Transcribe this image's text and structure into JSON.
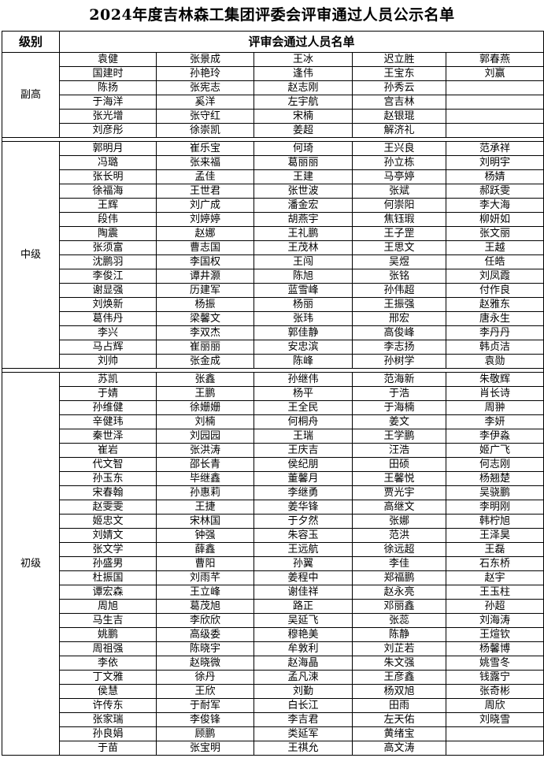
{
  "title": "2024年度吉林森工集团评委会评审通过人员公示名单",
  "header": {
    "level": "级别",
    "names": "评审会通过人员名单"
  },
  "sections": [
    {
      "level": "副高",
      "rows": [
        [
          "袁健",
          "张景成",
          "王冰",
          "迟立胜",
          "郭春燕"
        ],
        [
          "国建时",
          "孙艳玲",
          "逢伟",
          "王宝东",
          "刘赢"
        ],
        [
          "陈扬",
          "张宪志",
          "赵志刚",
          "孙秀云",
          ""
        ],
        [
          "于海洋",
          "奚洋",
          "左宇航",
          "宫吉林",
          ""
        ],
        [
          "张光增",
          "张守红",
          "宋楠",
          "赵银琨",
          ""
        ],
        [
          "刘彦彤",
          "徐崇凯",
          "姜超",
          "解济礼",
          ""
        ]
      ]
    },
    {
      "level": "中级",
      "rows": [
        [
          "郭明月",
          "崔乐宝",
          "何琦",
          "王兴良",
          "范承祥"
        ],
        [
          "冯璐",
          "张来福",
          "葛丽丽",
          "孙立栋",
          "刘明宇"
        ],
        [
          "张长明",
          "孟佳",
          "王建",
          "马亭婷",
          "杨婧"
        ],
        [
          "徐福海",
          "王世君",
          "张世波",
          "张斌",
          "郝跃雯"
        ],
        [
          "王辉",
          "刘广成",
          "潘金宏",
          "何崇阳",
          "李大海"
        ],
        [
          "段伟",
          "刘婷婷",
          "胡燕宇",
          "焦钰瑕",
          "柳妍如"
        ],
        [
          "陶震",
          "赵娜",
          "王礼鹏",
          "王子罡",
          "张文丽"
        ],
        [
          "张须富",
          "曹志国",
          "王茂林",
          "王思文",
          "王越"
        ],
        [
          "沈鹏羽",
          "李国权",
          "王闯",
          "吴煜",
          "任皓"
        ],
        [
          "李俊江",
          "谭井灏",
          "陈旭",
          "张铭",
          "刘凤霞"
        ],
        [
          "谢显强",
          "历建军",
          "蓝雪峰",
          "孙伟超",
          "付作良"
        ],
        [
          "刘焕新",
          "杨振",
          "杨丽",
          "王振强",
          "赵雅东"
        ],
        [
          "葛伟丹",
          "梁馨文",
          "张玮",
          "邢宏",
          "唐永生"
        ],
        [
          "李兴",
          "李双杰",
          "郭佳静",
          "高俊峰",
          "李丹丹"
        ],
        [
          "马占辉",
          "崔丽丽",
          "安忠滨",
          "李志扬",
          "韩贞洁"
        ],
        [
          "刘帅",
          "张金成",
          "陈峰",
          "孙树学",
          "袁勋"
        ]
      ]
    },
    {
      "level": "初级",
      "rows": [
        [
          "苏凯",
          "张鑫",
          "孙继伟",
          "范海新",
          "朱敬辉"
        ],
        [
          "于婧",
          "王鹏",
          "杨平",
          "于浩",
          "肖长诗"
        ],
        [
          "孙维健",
          "徐姗姗",
          "王全民",
          "于海楠",
          "周翀"
        ],
        [
          "辛健玮",
          "刘楠",
          "何桐舟",
          "姜文",
          "李妍"
        ],
        [
          "秦世泽",
          "刘园园",
          "王瑞",
          "王学鹏",
          "李伊淼"
        ],
        [
          "崔岩",
          "张洪涛",
          "王庆吉",
          "汪浩",
          "姬广飞"
        ],
        [
          "代文智",
          "邵长青",
          "侯纪朋",
          "田硕",
          "何志刚"
        ],
        [
          "孙玉东",
          "毕继鑫",
          "董馨月",
          "王馨悦",
          "杨翘楚"
        ],
        [
          "宋春翰",
          "孙惠莉",
          "李继勇",
          "贾光宇",
          "吴骁鹏"
        ],
        [
          "赵雯雯",
          "王捷",
          "姜华锋",
          "高继文",
          "李明刚"
        ],
        [
          "姬忠文",
          "宋林国",
          "于夕然",
          "张娜",
          "韩柠旭"
        ],
        [
          "刘婧文",
          "钟强",
          "朱容玉",
          "范洪",
          "王泽昊"
        ],
        [
          "张文学",
          "薛鑫",
          "王远航",
          "徐远超",
          "王磊"
        ],
        [
          "孙盛男",
          "曹阳",
          "孙翼",
          "李佳",
          "石东桥"
        ],
        [
          "杜振国",
          "刘雨芊",
          "姜程中",
          "郑福鹏",
          "赵宇"
        ],
        [
          "谭宏森",
          "王立峰",
          "谢佳祥",
          "赵永亮",
          "王玉柱"
        ],
        [
          "周旭",
          "葛茂旭",
          "路正",
          "邓丽鑫",
          "孙超"
        ],
        [
          "马生吉",
          "李欣欣",
          "吴延飞",
          "张蕊",
          "刘海涛"
        ],
        [
          "姚鹏",
          "高级委",
          "穆艳美",
          "陈静",
          "王煊钦"
        ],
        [
          "周祖强",
          "陈晓宇",
          "牟敦利",
          "刘芷若",
          "杨馨博"
        ],
        [
          "李依",
          "赵晓微",
          "赵海晶",
          "朱文强",
          "姚雪冬"
        ],
        [
          "丁文雅",
          "徐丹",
          "孟凡涑",
          "王彦鑫",
          "钱露宁"
        ],
        [
          "侯慧",
          "王欣",
          "刘勤",
          "杨双旭",
          "张奇彬"
        ],
        [
          "许传东",
          "于耐军",
          "白长江",
          "田雨",
          "周欣"
        ],
        [
          "张家瑞",
          "李俊锋",
          "李吉君",
          "左天佑",
          "刘晓雪"
        ],
        [
          "孙良娟",
          "顾鹏",
          "类延军",
          "黄绪宝",
          ""
        ],
        [
          "于苗",
          "张宝明",
          "王祺允",
          "高文涛",
          ""
        ]
      ]
    }
  ]
}
